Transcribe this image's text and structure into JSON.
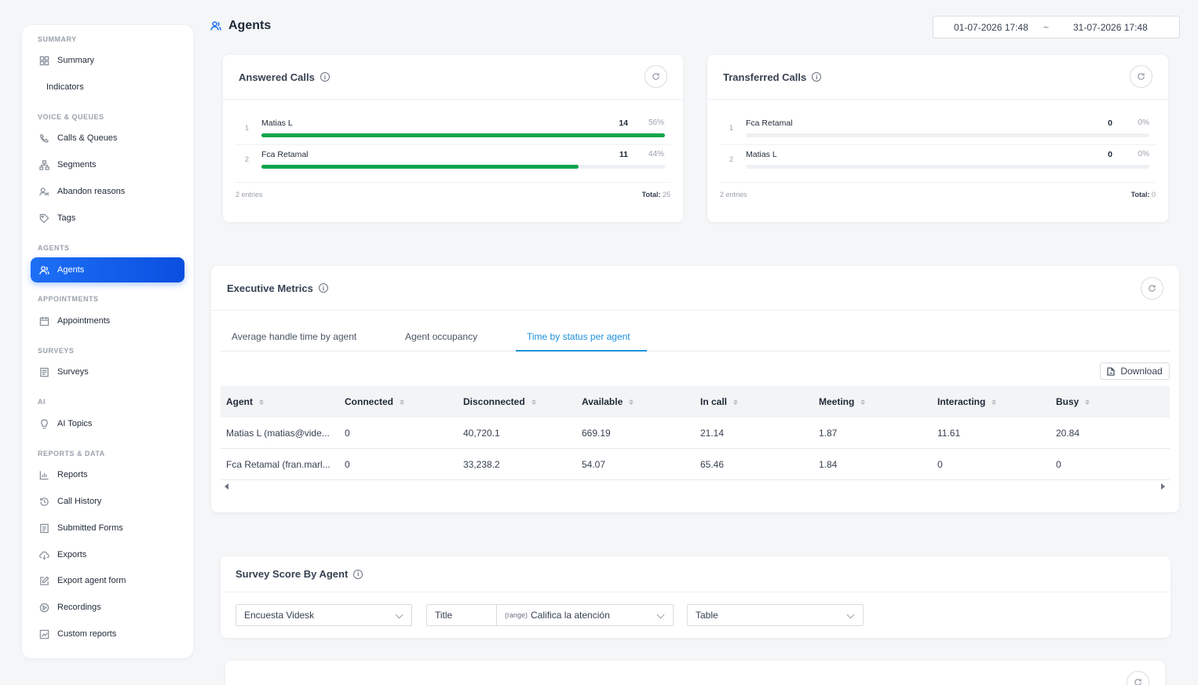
{
  "page": {
    "title": "Agents",
    "accent": "#1d6ff5"
  },
  "date_range": {
    "start": "01-07-2026 17:48",
    "separator": "~",
    "end": "31-07-2026 17:48"
  },
  "sidebar": {
    "sections": [
      {
        "label": "SUMMARY",
        "items": [
          {
            "label": "Summary",
            "icon": "grid-icon"
          },
          {
            "label": "Indicators",
            "icon": ""
          }
        ]
      },
      {
        "label": "VOICE & QUEUES",
        "items": [
          {
            "label": "Calls & Queues",
            "icon": "phone-icon"
          },
          {
            "label": "Segments",
            "icon": "segments-icon"
          },
          {
            "label": "Abandon reasons",
            "icon": "abandon-icon"
          },
          {
            "label": "Tags",
            "icon": "tag-icon"
          }
        ]
      },
      {
        "label": "AGENTS",
        "items": [
          {
            "label": "Agents",
            "icon": "agents-icon",
            "active": true
          }
        ]
      },
      {
        "label": "APPOINTMENTS",
        "items": [
          {
            "label": "Appointments",
            "icon": "calendar-icon"
          }
        ]
      },
      {
        "label": "SURVEYS",
        "items": [
          {
            "label": "Surveys",
            "icon": "survey-icon"
          }
        ]
      },
      {
        "label": "AI",
        "items": [
          {
            "label": "AI Topics",
            "icon": "bulb-icon"
          }
        ]
      },
      {
        "label": "REPORTS & DATA",
        "items": [
          {
            "label": "Reports",
            "icon": "chart-icon"
          },
          {
            "label": "Call History",
            "icon": "history-icon"
          },
          {
            "label": "Submitted Forms",
            "icon": "form-icon"
          },
          {
            "label": "Exports",
            "icon": "cloud-icon"
          },
          {
            "label": "Export agent form",
            "icon": "edit-icon"
          },
          {
            "label": "Recordings",
            "icon": "play-icon"
          },
          {
            "label": "Custom reports",
            "icon": "trend-icon"
          }
        ]
      }
    ]
  },
  "answered_calls": {
    "title": "Answered Calls",
    "rows": [
      {
        "rank": "1",
        "name": "Matias L",
        "value": "14",
        "pct": "56%",
        "fill": 1.0
      },
      {
        "rank": "2",
        "name": "Fca Retamal",
        "value": "11",
        "pct": "44%",
        "fill": 0.786
      }
    ],
    "entries": "2 entries",
    "total_label": "Total:",
    "total_value": "25"
  },
  "transferred_calls": {
    "title": "Transferred Calls",
    "rows": [
      {
        "rank": "1",
        "name": "Fca Retamal",
        "value": "0",
        "pct": "0%",
        "fill": 0
      },
      {
        "rank": "2",
        "name": "Matias L",
        "value": "0",
        "pct": "0%",
        "fill": 0
      }
    ],
    "entries": "2 entries",
    "total_label": "Total:",
    "total_value": "0"
  },
  "executive": {
    "title": "Executive Metrics",
    "tabs": [
      "Average handle time by agent",
      "Agent occupancy",
      "Time by status per agent"
    ],
    "active_tab": 2,
    "download_label": "Download",
    "columns": [
      "Agent",
      "Connected",
      "Disconnected",
      "Available",
      "In call",
      "Meeting",
      "Interacting",
      "Busy"
    ],
    "rows": [
      [
        "Matias L (matias@vide...",
        "0",
        "40,720.1",
        "669.19",
        "21.14",
        "1.87",
        "11.61",
        "20.84"
      ],
      [
        "Fca Retamal (fran.marl...",
        "0",
        "33,238.2",
        "54.07",
        "65.46",
        "1.84",
        "0",
        "0"
      ]
    ]
  },
  "survey": {
    "title": "Survey Score By Agent",
    "survey_select": "Encuesta Videsk",
    "title_select": "Title",
    "question_tag": "(range)",
    "question_select": "Califica la atención",
    "view_select": "Table"
  }
}
